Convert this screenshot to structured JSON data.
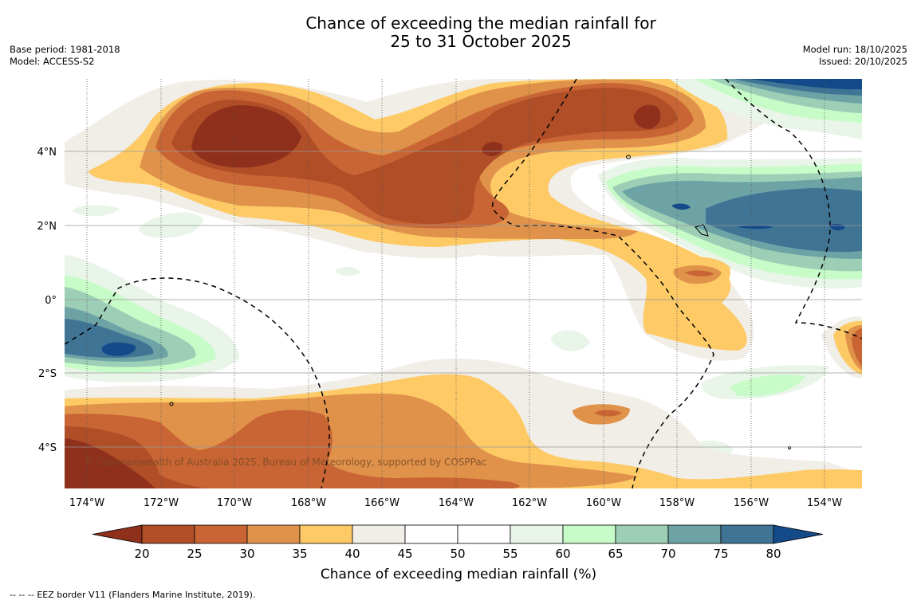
{
  "title": {
    "line1": "Chance of exceeding the median rainfall for",
    "line2": "25 to 31 October 2025"
  },
  "meta_left": {
    "base_period": "Base period: 1981-2018",
    "model": "Model: ACCESS-S2"
  },
  "meta_right": {
    "model_run": "Model run: 18/10/2025",
    "issued": "Issued: 20/10/2025"
  },
  "map": {
    "lon_labels": [
      "174°W",
      "172°W",
      "170°W",
      "168°W",
      "166°W",
      "164°W",
      "162°W",
      "160°W",
      "158°W",
      "156°W",
      "154°W"
    ],
    "lat_labels": [
      "4°N",
      "2°N",
      "0°",
      "2°S",
      "4°S"
    ],
    "copyright": "© Commonwealth of Australia 2025, Bureau of Meteorology, supported by COSPPac"
  },
  "colorbar": {
    "ticks": [
      "20",
      "25",
      "30",
      "35",
      "40",
      "45",
      "50",
      "55",
      "60",
      "65",
      "70",
      "75",
      "80"
    ],
    "colors": [
      "#8f301c",
      "#b04e28",
      "#c96534",
      "#e0924a",
      "#fdca66",
      "#f1ede7",
      "#ffffff",
      "#ffffff",
      "#e9f5e8",
      "#c7fbc8",
      "#9ccfb6",
      "#6ea3a6",
      "#3f7495",
      "#144a8a"
    ],
    "title": "Chance of exceeding median rainfall (%)"
  },
  "footer": {
    "legend_symbol": "--  --  --",
    "legend_text": "EEZ border V11 (Flanders Marine Institute, 2019)."
  }
}
